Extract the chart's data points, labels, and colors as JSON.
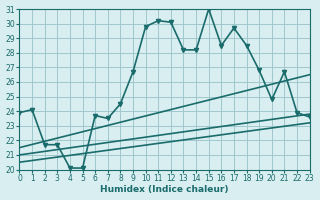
{
  "xlabel": "Humidex (Indice chaleur)",
  "background_color": "#d8eef0",
  "grid_color": "#a0c8cc",
  "line_color": "#1a6b6b",
  "xlim": [
    0,
    23
  ],
  "ylim": [
    20,
    31
  ],
  "xticks": [
    0,
    1,
    2,
    3,
    4,
    5,
    6,
    7,
    8,
    9,
    10,
    11,
    12,
    13,
    14,
    15,
    16,
    17,
    18,
    19,
    20,
    21,
    22,
    23
  ],
  "yticks": [
    20,
    21,
    22,
    23,
    24,
    25,
    26,
    27,
    28,
    29,
    30,
    31
  ],
  "series": [
    {
      "x": [
        0,
        1,
        2,
        3,
        4,
        5,
        6,
        7,
        8,
        9,
        10,
        11,
        12,
        13,
        14,
        15,
        16,
        17,
        18,
        19,
        20,
        21,
        22,
        23
      ],
      "y": [
        23.9,
        24.1,
        21.7,
        21.7,
        20.1,
        20.1,
        23.7,
        23.5,
        24.5,
        26.7,
        29.8,
        30.2,
        30.1,
        28.2,
        28.2,
        31.0,
        28.5,
        29.7,
        28.5,
        26.8,
        24.8,
        26.7,
        23.9,
        23.6
      ],
      "marker": "v",
      "markersize": 3,
      "linewidth": 1.2
    },
    {
      "x": [
        0,
        23
      ],
      "y": [
        21.5,
        26.5
      ],
      "marker": null,
      "markersize": 0,
      "linewidth": 1.2
    },
    {
      "x": [
        0,
        23
      ],
      "y": [
        21.0,
        23.8
      ],
      "marker": null,
      "markersize": 0,
      "linewidth": 1.2
    },
    {
      "x": [
        0,
        23
      ],
      "y": [
        20.5,
        23.2
      ],
      "marker": null,
      "markersize": 0,
      "linewidth": 1.2
    }
  ]
}
